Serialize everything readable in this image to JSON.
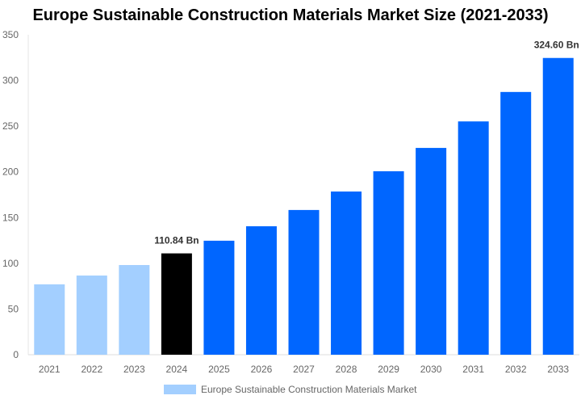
{
  "chart_data": {
    "type": "bar",
    "title": "Europe Sustainable Construction Materials Market Size (2021-2033)",
    "categories": [
      "2021",
      "2022",
      "2023",
      "2024",
      "2025",
      "2026",
      "2027",
      "2028",
      "2029",
      "2030",
      "2031",
      "2032",
      "2033"
    ],
    "series": [
      {
        "name": "Europe Sustainable Construction Materials Market",
        "values": [
          77.0,
          86.6,
          98.1,
          110.84,
          124.7,
          140.5,
          158.3,
          178.5,
          200.7,
          226.2,
          255.2,
          287.4,
          324.6
        ]
      }
    ],
    "ylim": [
      0,
      350
    ],
    "yticks": [
      0,
      50,
      100,
      150,
      200,
      250,
      300,
      350
    ],
    "data_labels": {
      "2024": "110.84 Bn",
      "2033": "324.60 Bn"
    },
    "colors": {
      "historical": "#a3cfff",
      "base_year": "#000000",
      "forecast": "#0066ff"
    },
    "historical_years": [
      "2021",
      "2022",
      "2023"
    ],
    "base_year": "2024",
    "grid": false,
    "legend": "bottom"
  }
}
